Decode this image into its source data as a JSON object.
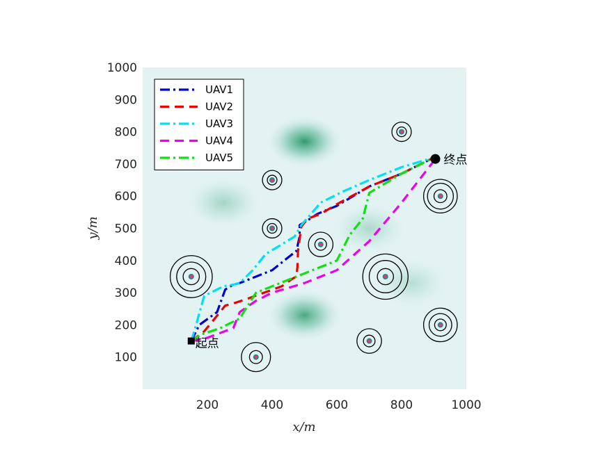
{
  "chart_data": {
    "type": "line",
    "xlabel": "x/m",
    "ylabel": "y/m",
    "xlim": [
      0,
      1000
    ],
    "ylim": [
      0,
      1000
    ],
    "xticks": [
      200,
      400,
      600,
      800,
      1000
    ],
    "yticks": [
      100,
      200,
      300,
      400,
      500,
      600,
      700,
      800,
      900,
      1000
    ],
    "legend_position": "top-left",
    "start": {
      "label": "起点",
      "x": 150,
      "y": 150
    },
    "goal": {
      "label": "终点",
      "x": 900,
      "y": 720
    },
    "terrain_peaks": [
      {
        "x": 500,
        "y": 770,
        "strength": 1.0
      },
      {
        "x": 500,
        "y": 230,
        "strength": 0.85
      },
      {
        "x": 250,
        "y": 580,
        "strength": 0.35
      },
      {
        "x": 700,
        "y": 500,
        "strength": 0.3
      },
      {
        "x": 830,
        "y": 330,
        "strength": 0.25
      }
    ],
    "threats": [
      {
        "x": 150,
        "y": 350,
        "rings": [
          25,
          45,
          65
        ]
      },
      {
        "x": 350,
        "y": 100,
        "rings": [
          20,
          45
        ]
      },
      {
        "x": 400,
        "y": 650,
        "rings": [
          15,
          30
        ]
      },
      {
        "x": 400,
        "y": 500,
        "rings": [
          15,
          30
        ]
      },
      {
        "x": 550,
        "y": 450,
        "rings": [
          18,
          38
        ]
      },
      {
        "x": 700,
        "y": 150,
        "rings": [
          18,
          38
        ]
      },
      {
        "x": 750,
        "y": 350,
        "rings": [
          25,
          50,
          70
        ]
      },
      {
        "x": 800,
        "y": 800,
        "rings": [
          15,
          30
        ]
      },
      {
        "x": 920,
        "y": 600,
        "rings": [
          20,
          40,
          52
        ]
      },
      {
        "x": 920,
        "y": 200,
        "rings": [
          18,
          35,
          52
        ]
      }
    ],
    "series": [
      {
        "name": "UAV1",
        "color": "#0000d0",
        "dash": "dashdot",
        "x": [
          150,
          175,
          230,
          230,
          255,
          280,
          300,
          400,
          475,
          485,
          485,
          510,
          540,
          600,
          700,
          800,
          900
        ],
        "y": [
          150,
          200,
          240,
          240,
          310,
          325,
          330,
          370,
          430,
          475,
          510,
          525,
          545,
          570,
          630,
          670,
          720
        ]
      },
      {
        "name": "UAV2",
        "color": "#ee0000",
        "dash": "dashed",
        "x": [
          150,
          190,
          235,
          255,
          275,
          320,
          430,
          465,
          475,
          478,
          480,
          490,
          510,
          550,
          600,
          700,
          800,
          900
        ],
        "y": [
          150,
          180,
          235,
          260,
          265,
          280,
          320,
          345,
          350,
          380,
          430,
          505,
          530,
          545,
          575,
          630,
          670,
          720
        ]
      },
      {
        "name": "UAV3",
        "color": "#00e0f0",
        "dash": "dashdot",
        "x": [
          150,
          165,
          190,
          250,
          280,
          300,
          340,
          380,
          430,
          470,
          490,
          550,
          620,
          700,
          800,
          900
        ],
        "y": [
          150,
          200,
          290,
          320,
          325,
          330,
          370,
          420,
          450,
          475,
          510,
          580,
          615,
          650,
          690,
          720
        ]
      },
      {
        "name": "UAV4",
        "color": "#ee00ee",
        "dash": "dashed",
        "x": [
          150,
          200,
          280,
          300,
          350,
          400,
          500,
          600,
          700,
          800,
          900
        ],
        "y": [
          150,
          160,
          190,
          240,
          275,
          300,
          330,
          370,
          460,
          580,
          710
        ]
      },
      {
        "name": "UAV5",
        "color": "#10e010",
        "dash": "dashdot",
        "x": [
          150,
          180,
          240,
          300,
          350,
          400,
          500,
          600,
          640,
          680,
          700,
          800,
          900
        ],
        "y": [
          150,
          170,
          190,
          220,
          300,
          320,
          360,
          400,
          480,
          530,
          610,
          670,
          720
        ]
      }
    ]
  }
}
